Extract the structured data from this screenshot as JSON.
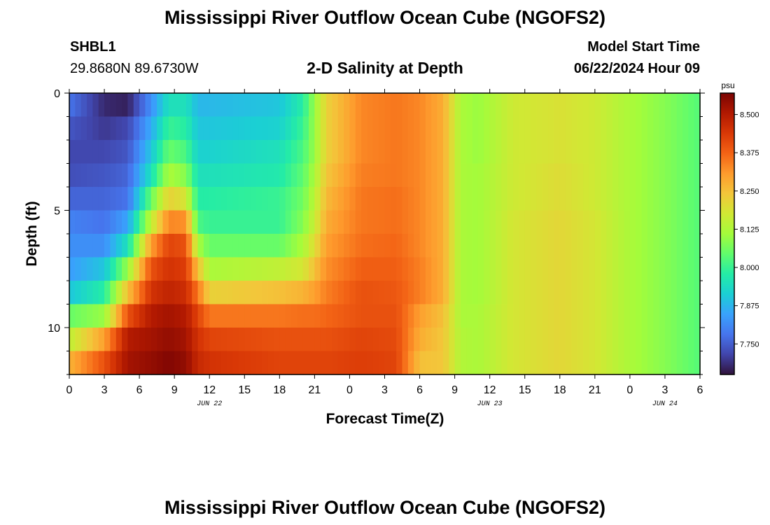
{
  "header": {
    "title": "Mississippi River Outflow Ocean Cube (NGOFS2)",
    "station_id": "SHBL1",
    "station_coords": "29.8680N  89.6730W",
    "plot_subtitle": "2-D Salinity at Depth",
    "model_start_label": "Model Start Time",
    "model_start_value": "06/22/2024 Hour 09"
  },
  "footer": {
    "title": "Mississippi River Outflow Ocean Cube (NGOFS2)"
  },
  "chart_data": {
    "type": "heatmap",
    "title": "2-D Salinity at Depth",
    "xlabel": "Forecast Time(Z)",
    "ylabel": "Depth (ft)",
    "x_range_hours": [
      0,
      54
    ],
    "x_tick_labels": [
      "0",
      "3",
      "6",
      "9",
      "12",
      "15",
      "18",
      "21",
      "0",
      "3",
      "6",
      "9",
      "12",
      "15",
      "18",
      "21",
      "0",
      "3",
      "6"
    ],
    "date_labels": [
      {
        "label": "JUN 22",
        "at_hour": 12
      },
      {
        "label": "JUN 23",
        "at_hour": 36
      },
      {
        "label": "JUN 24",
        "at_hour": 51
      }
    ],
    "y_range_ft": [
      0,
      12
    ],
    "y_reversed": true,
    "y_tick_labels": [
      0,
      5,
      10
    ],
    "y_minor_step": 1,
    "depth_levels": 12,
    "colorbar": {
      "unit": "psu",
      "min": 7.65,
      "max": 8.57,
      "tick_values": [
        7.75,
        7.875,
        8.0,
        8.125,
        8.25,
        8.375,
        8.5
      ],
      "tick_labels": [
        "7.750",
        "7.875",
        "8.000",
        "8.125",
        "8.250",
        "8.375",
        "8.500"
      ],
      "colormap": [
        "#30123b",
        "#4145ab",
        "#4675ed",
        "#39a2fc",
        "#1bcfd4",
        "#24eca6",
        "#61fc6c",
        "#a4fc3b",
        "#d1e834",
        "#f3c63a",
        "#fe9b2d",
        "#f36315",
        "#d93806",
        "#b11901",
        "#7a0403"
      ]
    },
    "profiles_note": "Salinity (psu) by depth layer at key forecast hours; intermediate hours are linear interpolations.",
    "keyframes": [
      {
        "hour": 0,
        "values": [
          7.78,
          7.74,
          7.72,
          7.73,
          7.76,
          7.8,
          7.82,
          7.84,
          7.9,
          8.05,
          8.15,
          8.27
        ]
      },
      {
        "hour": 3,
        "values": [
          7.68,
          7.7,
          7.72,
          7.74,
          7.76,
          7.78,
          7.82,
          7.9,
          7.98,
          8.1,
          8.3,
          8.4
        ]
      },
      {
        "hour": 5,
        "values": [
          7.67,
          7.72,
          7.74,
          7.76,
          7.78,
          7.85,
          7.95,
          8.1,
          8.25,
          8.4,
          8.5,
          8.52
        ]
      },
      {
        "hour": 7,
        "values": [
          7.82,
          7.86,
          7.9,
          7.95,
          8.05,
          8.15,
          8.3,
          8.4,
          8.45,
          8.5,
          8.52,
          8.54
        ]
      },
      {
        "hour": 8.5,
        "values": [
          7.95,
          8.0,
          8.05,
          8.12,
          8.22,
          8.33,
          8.42,
          8.45,
          8.48,
          8.52,
          8.54,
          8.56
        ]
      },
      {
        "hour": 10,
        "values": [
          7.95,
          7.98,
          8.02,
          8.08,
          8.18,
          8.32,
          8.4,
          8.43,
          8.46,
          8.5,
          8.52,
          8.54
        ]
      },
      {
        "hour": 11,
        "values": [
          7.88,
          7.9,
          7.92,
          7.95,
          7.98,
          8.02,
          8.12,
          8.25,
          8.35,
          8.42,
          8.45,
          8.47
        ]
      },
      {
        "hour": 12,
        "values": [
          7.88,
          7.9,
          7.92,
          7.95,
          7.98,
          8.0,
          8.05,
          8.12,
          8.22,
          8.35,
          8.42,
          8.45
        ]
      },
      {
        "hour": 18,
        "values": [
          7.9,
          7.92,
          7.95,
          7.97,
          8.0,
          8.0,
          8.05,
          8.15,
          8.25,
          8.35,
          8.4,
          8.42
        ]
      },
      {
        "hour": 20,
        "values": [
          7.98,
          8.0,
          8.02,
          8.04,
          8.06,
          8.08,
          8.12,
          8.18,
          8.27,
          8.36,
          8.4,
          8.42
        ]
      },
      {
        "hour": 21,
        "values": [
          8.1,
          8.1,
          8.1,
          8.12,
          8.14,
          8.16,
          8.2,
          8.25,
          8.3,
          8.36,
          8.4,
          8.42
        ]
      },
      {
        "hour": 22,
        "values": [
          8.22,
          8.22,
          8.22,
          8.24,
          8.26,
          8.28,
          8.3,
          8.32,
          8.34,
          8.37,
          8.4,
          8.42
        ]
      },
      {
        "hour": 25,
        "values": [
          8.33,
          8.33,
          8.33,
          8.34,
          8.35,
          8.35,
          8.36,
          8.38,
          8.4,
          8.4,
          8.42,
          8.43
        ]
      },
      {
        "hour": 28,
        "values": [
          8.35,
          8.35,
          8.35,
          8.35,
          8.36,
          8.36,
          8.37,
          8.38,
          8.39,
          8.4,
          8.41,
          8.42
        ]
      },
      {
        "hour": 30,
        "values": [
          8.33,
          8.33,
          8.33,
          8.33,
          8.33,
          8.33,
          8.33,
          8.34,
          8.34,
          8.3,
          8.28,
          8.25
        ]
      },
      {
        "hour": 32,
        "values": [
          8.28,
          8.28,
          8.28,
          8.28,
          8.28,
          8.28,
          8.28,
          8.28,
          8.28,
          8.25,
          8.24,
          8.24
        ]
      },
      {
        "hour": 33.5,
        "values": [
          8.12,
          8.12,
          8.12,
          8.12,
          8.12,
          8.12,
          8.12,
          8.12,
          8.12,
          8.12,
          8.13,
          8.13
        ]
      },
      {
        "hour": 35,
        "values": [
          8.1,
          8.1,
          8.1,
          8.11,
          8.11,
          8.11,
          8.11,
          8.11,
          8.11,
          8.12,
          8.12,
          8.12
        ]
      },
      {
        "hour": 38,
        "values": [
          8.17,
          8.17,
          8.17,
          8.17,
          8.17,
          8.18,
          8.18,
          8.18,
          8.18,
          8.18,
          8.18,
          8.18
        ]
      },
      {
        "hour": 42,
        "values": [
          8.19,
          8.19,
          8.19,
          8.2,
          8.2,
          8.21,
          8.21,
          8.21,
          8.21,
          8.21,
          8.21,
          8.21
        ]
      },
      {
        "hour": 45,
        "values": [
          8.17,
          8.17,
          8.17,
          8.17,
          8.17,
          8.18,
          8.18,
          8.18,
          8.18,
          8.18,
          8.18,
          8.18
        ]
      },
      {
        "hour": 48,
        "values": [
          8.12,
          8.12,
          8.12,
          8.12,
          8.12,
          8.12,
          8.12,
          8.12,
          8.12,
          8.12,
          8.12,
          8.12
        ]
      },
      {
        "hour": 51,
        "values": [
          8.08,
          8.08,
          8.08,
          8.08,
          8.08,
          8.08,
          8.08,
          8.08,
          8.08,
          8.08,
          8.08,
          8.08
        ]
      },
      {
        "hour": 54,
        "values": [
          8.03,
          8.03,
          8.03,
          8.03,
          8.03,
          8.03,
          8.03,
          8.03,
          8.03,
          8.03,
          8.03,
          8.03
        ]
      }
    ]
  }
}
